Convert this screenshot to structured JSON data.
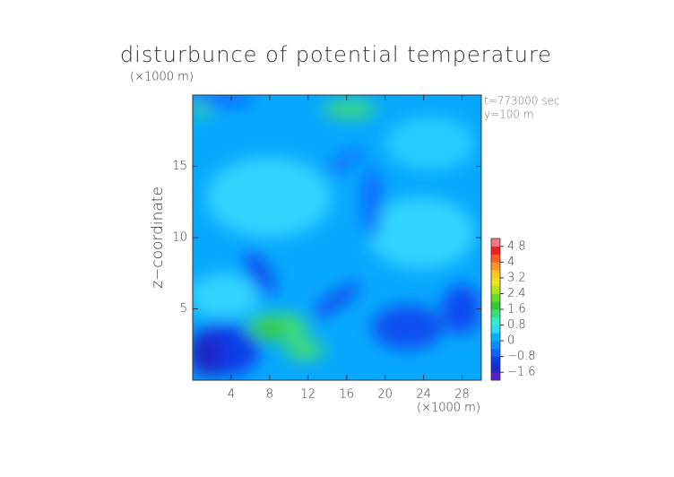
{
  "chart_data": {
    "type": "contour",
    "title": "disturbunce of potential temperature",
    "ylabel": "z−coordinate",
    "yunit": "(×1000 m)",
    "xunit": "(×1000 m)",
    "annotations": [
      "t=773000 sec",
      "y=100 m"
    ],
    "xlim": [
      0,
      30
    ],
    "xticks": [
      4,
      8,
      12,
      16,
      20,
      24,
      28
    ],
    "ylim": [
      0,
      20
    ],
    "yticks": [
      5,
      10,
      15
    ],
    "colorbar": {
      "lim": [
        -2,
        5.2
      ],
      "ticks": [
        {
          "value": -1.6,
          "label": "−1.6"
        },
        {
          "value": -0.8,
          "label": "−0.8"
        },
        0,
        0.8,
        1.6,
        2.4,
        3.2,
        4,
        4.8
      ],
      "colors": [
        "#5a1ecc",
        "#1e28c8",
        "#0a3ce8",
        "#0a64ff",
        "#0a8cff",
        "#00b4ff",
        "#28dcff",
        "#2cf0d0",
        "#3cdc78",
        "#32c832",
        "#64dc28",
        "#b4e61e",
        "#e6e61e",
        "#ffc81e",
        "#ff9628",
        "#ff5a28",
        "#f01e1e",
        "#f07882"
      ]
    }
  }
}
